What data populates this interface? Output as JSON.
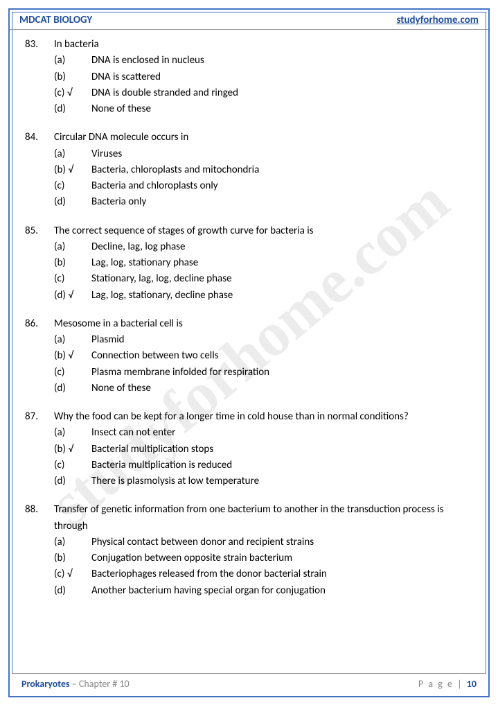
{
  "header": {
    "left": "MDCAT BIOLOGY",
    "right": "studyforhome.com"
  },
  "watermark": "studyforhome.com",
  "questions": [
    {
      "num": "83.",
      "text": "In bacteria",
      "options": [
        {
          "label": "(a)",
          "text": "DNA is enclosed in nucleus"
        },
        {
          "label": "(b)",
          "text": "DNA is scattered"
        },
        {
          "label": "(c) √",
          "text": "DNA is double stranded and ringed"
        },
        {
          "label": "(d)",
          "text": "None of these"
        }
      ]
    },
    {
      "num": "84.",
      "text": "Circular DNA molecule occurs in",
      "options": [
        {
          "label": "(a)",
          "text": "Viruses"
        },
        {
          "label": "(b) √",
          "text": "Bacteria, chloroplasts and mitochondria"
        },
        {
          "label": "(c)",
          "text": "Bacteria and chloroplasts only"
        },
        {
          "label": "(d)",
          "text": "Bacteria only"
        }
      ]
    },
    {
      "num": "85.",
      "text": "The correct sequence of stages of growth curve for bacteria is",
      "options": [
        {
          "label": "(a)",
          "text": "Decline, lag, log phase"
        },
        {
          "label": "(b)",
          "text": "Lag, log, stationary phase"
        },
        {
          "label": "(c)",
          "text": "Stationary, lag, log, decline phase"
        },
        {
          "label": "(d) √",
          "text": "Lag, log, stationary, decline phase"
        }
      ]
    },
    {
      "num": "86.",
      "text": "Mesosome in a bacterial cell is",
      "options": [
        {
          "label": "(a)",
          "text": "Plasmid"
        },
        {
          "label": "(b) √",
          "text": "Connection between two cells"
        },
        {
          "label": "(c)",
          "text": "Plasma membrane infolded for respiration"
        },
        {
          "label": "(d)",
          "text": "None of these"
        }
      ]
    },
    {
      "num": "87.",
      "text": "Why the food can be kept for a longer time in cold house than in normal conditions?",
      "options": [
        {
          "label": "(a)",
          "text": "Insect can not enter"
        },
        {
          "label": "(b) √",
          "text": "Bacterial multiplication stops"
        },
        {
          "label": "(c)",
          "text": "Bacteria multiplication is reduced"
        },
        {
          "label": "(d)",
          "text": "There is plasmolysis at low temperature"
        }
      ]
    },
    {
      "num": "88.",
      "text": "Transfer of genetic information from one bacterium to another in the transduction process is through",
      "options": [
        {
          "label": "(a)",
          "text": "Physical contact between donor and recipient strains"
        },
        {
          "label": "(b)",
          "text": "Conjugation between opposite strain bacterium"
        },
        {
          "label": "(c) √",
          "text": "Bacteriophages released from the donor bacterial strain"
        },
        {
          "label": "(d)",
          "text": "Another bacterium having special organ for conjugation"
        }
      ]
    }
  ],
  "footer": {
    "topic": "Prokaryotes",
    "chapter": " – Chapter # 10",
    "page_label": "P a g e  | ",
    "page_num": "10"
  }
}
